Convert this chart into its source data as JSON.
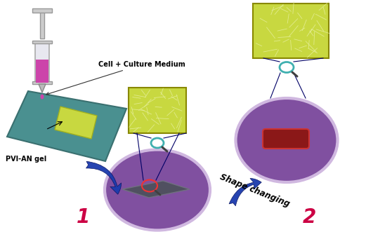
{
  "title": "",
  "background_color": "#ffffff",
  "label_1": "1",
  "label_2": "2",
  "label_pvi": "PVI-AN gel",
  "label_cell": "Cell + Culture Medium",
  "label_shape": "Shape changing",
  "label_1_color": "#cc0044",
  "label_2_color": "#cc0044",
  "label_shape_color": "#000000",
  "arrow_color": "#1a3aad",
  "figsize": [
    5.21,
    3.31
  ],
  "dpi": 100
}
